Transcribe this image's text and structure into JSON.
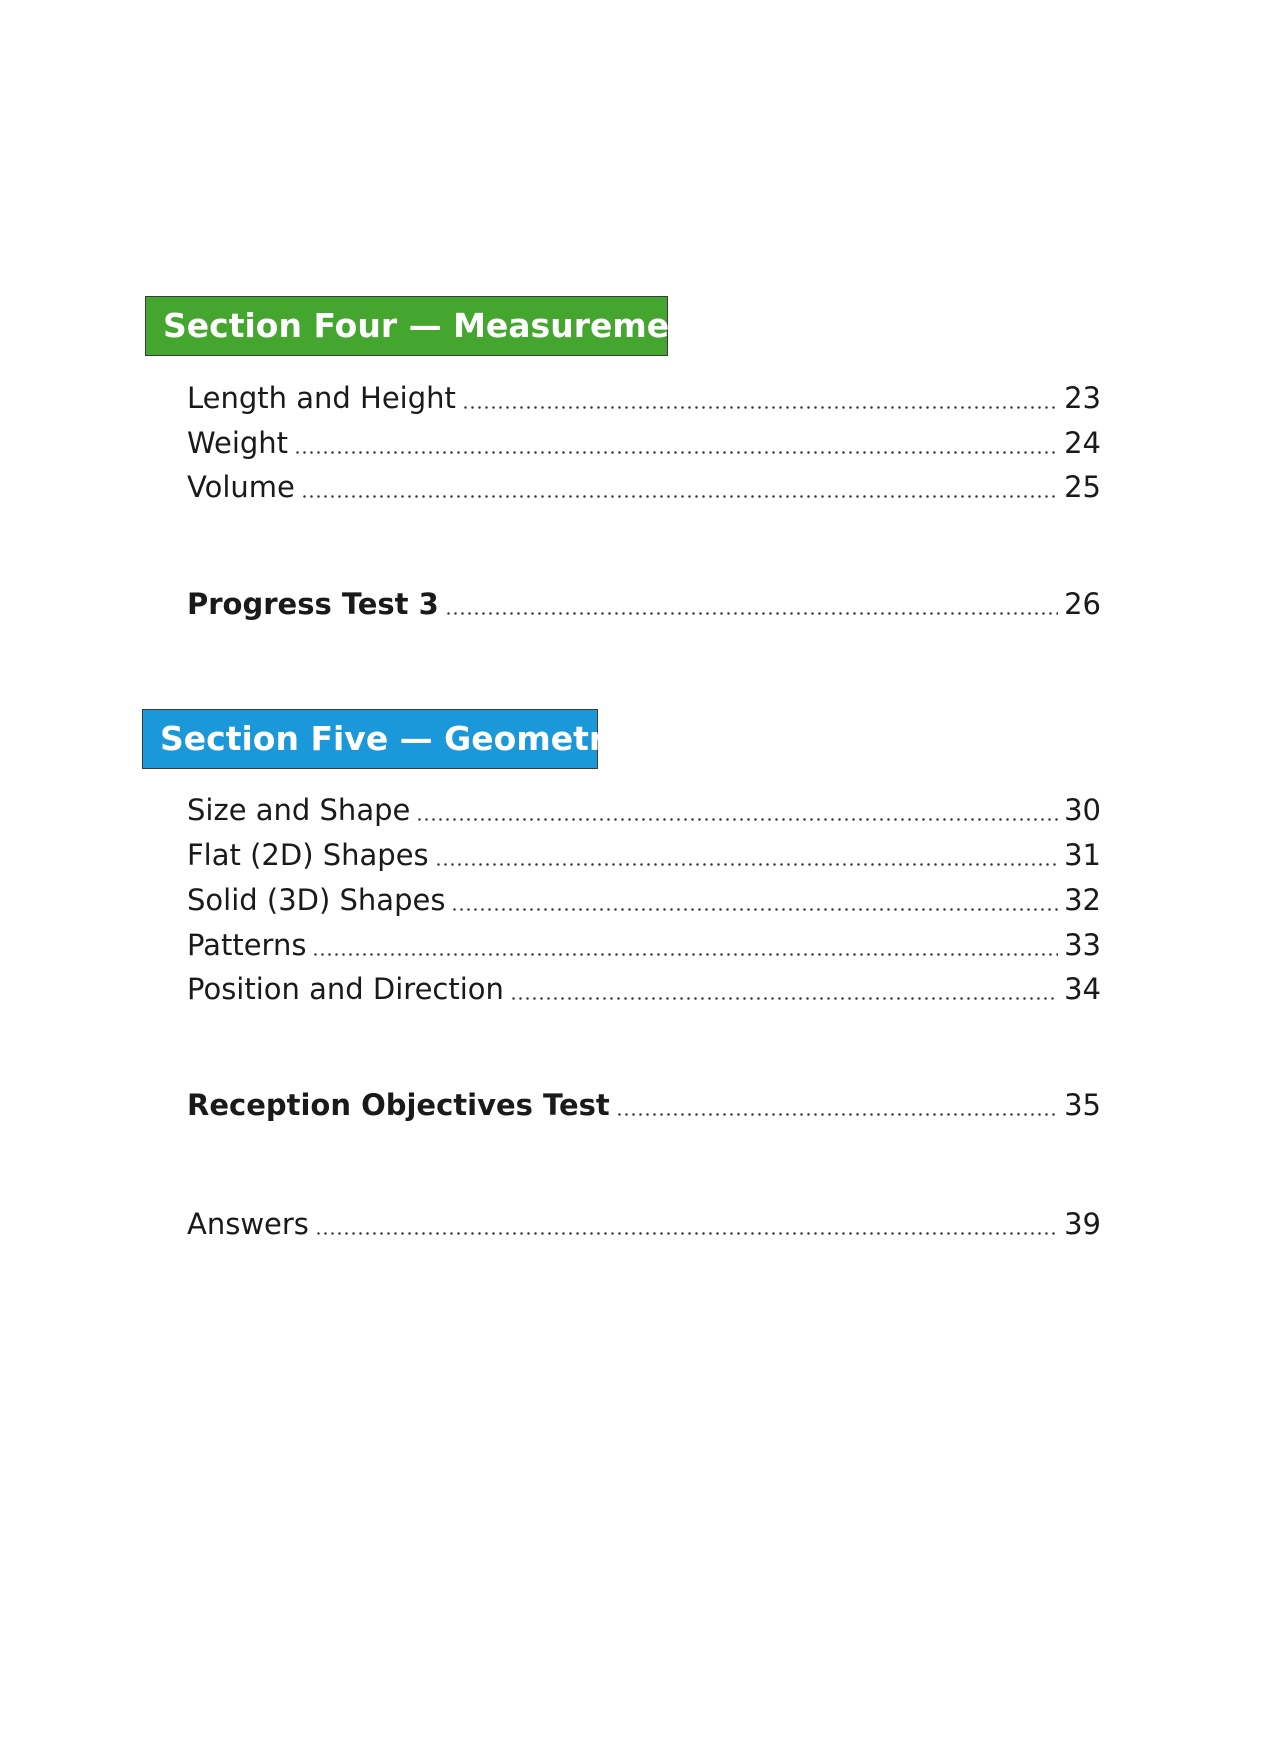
{
  "sections": [
    {
      "title": "Section Four — Measurement",
      "color": "#44a62e",
      "entries": [
        {
          "label": "Length and Height",
          "page": "23"
        },
        {
          "label": "Weight",
          "page": "24"
        },
        {
          "label": "Volume",
          "page": "25"
        }
      ]
    },
    {
      "title": "Section Five — Geometry",
      "color": "#1a98da",
      "entries": [
        {
          "label": "Size and Shape",
          "page": "30"
        },
        {
          "label": "Flat (2D) Shapes",
          "page": "31"
        },
        {
          "label": "Solid (3D) Shapes",
          "page": "32"
        },
        {
          "label": "Patterns",
          "page": "33"
        },
        {
          "label": "Position and Direction",
          "page": "34"
        }
      ]
    }
  ],
  "tests": [
    {
      "label": "Progress Test 3",
      "page": "26"
    },
    {
      "label": "Reception Objectives Test",
      "page": "35"
    }
  ],
  "answers": {
    "label": "Answers",
    "page": "39"
  }
}
